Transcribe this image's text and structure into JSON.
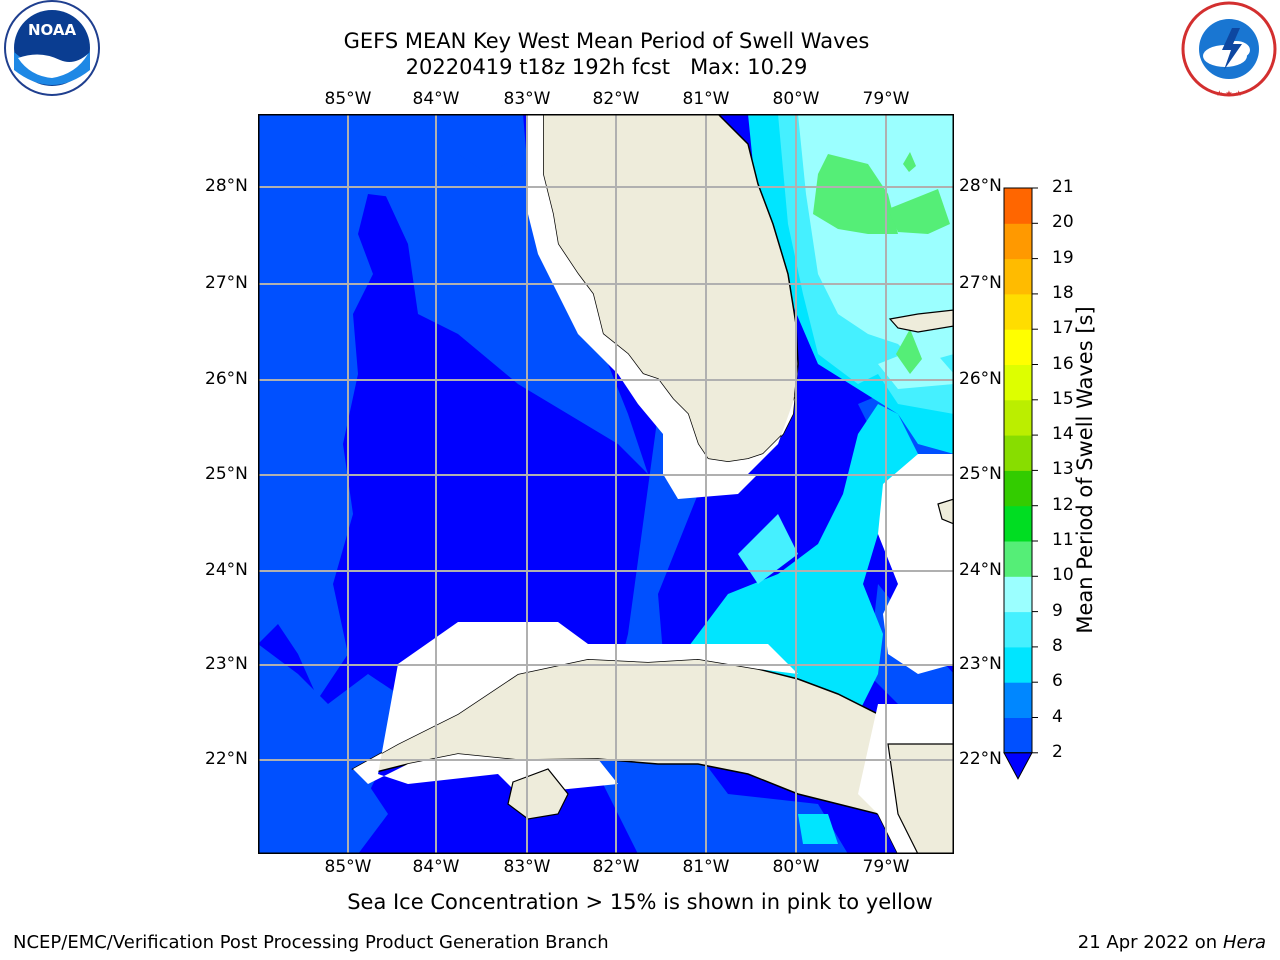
{
  "title": {
    "line1": "GEFS MEAN Key West Mean Period of Swell Waves",
    "line2": "20220419 t18z 192h fcst   Max: 10.29"
  },
  "map": {
    "lon_labels": [
      "85°W",
      "84°W",
      "83°W",
      "82°W",
      "81°W",
      "80°W",
      "79°W"
    ],
    "lat_labels": [
      "28°N",
      "27°N",
      "26°N",
      "25°N",
      "24°N",
      "23°N",
      "22°N"
    ],
    "colors": {
      "land": "#eeecdb",
      "no_data": "#ffffff",
      "grid": "#b0b0b0",
      "coast": "#000000"
    }
  },
  "colorbar": {
    "label": "Mean Period of Swell Waves [s]",
    "ticks": [
      "2",
      "4",
      "6",
      "8",
      "9",
      "10",
      "11",
      "12",
      "13",
      "14",
      "15",
      "16",
      "17",
      "18",
      "19",
      "20",
      "21"
    ],
    "colors": [
      "#0050ff",
      "#0087ff",
      "#00e5ff",
      "#45f0ff",
      "#9bffff",
      "#55ee77",
      "#00dd22",
      "#33cc00",
      "#88dd00",
      "#bbee00",
      "#ddff00",
      "#ffff00",
      "#ffdd00",
      "#ffbb00",
      "#ff9900",
      "#ff6600",
      "#ff3300",
      "#ff0000"
    ],
    "extend_min_color": "#0000ff"
  },
  "note": "Sea Ice Concentration > 15% is shown in pink to yellow",
  "footer": {
    "left": "NCEP/EMC/Verification Post Processing Product Generation Branch",
    "right_date": "21 Apr 2022 on ",
    "right_host": "Hera"
  },
  "logos": {
    "noaa": "NOAA",
    "nws": "NATIONAL WEATHER SERVICE"
  }
}
